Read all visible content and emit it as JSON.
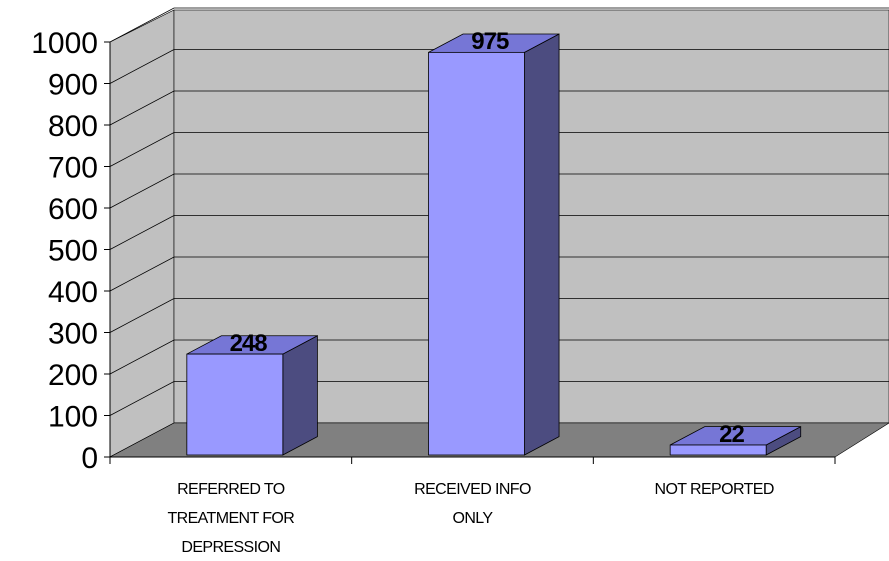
{
  "chart_data": {
    "type": "bar",
    "three_d": true,
    "categories": [
      [
        "REFERRED TO",
        "TREATMENT FOR",
        "DEPRESSION"
      ],
      [
        "RECEIVED INFO",
        "ONLY"
      ],
      [
        "NOT REPORTED"
      ]
    ],
    "values": [
      248,
      975,
      22
    ],
    "data_labels": [
      "248",
      "975",
      "22"
    ],
    "ylim": [
      0,
      1000
    ],
    "yticks": [
      0,
      100,
      200,
      300,
      400,
      500,
      600,
      700,
      800,
      900,
      1000
    ],
    "ytick_labels": [
      "0",
      "100",
      "200",
      "300",
      "400",
      "500",
      "600",
      "700",
      "800",
      "900",
      "1000"
    ],
    "grid": true,
    "title": "",
    "xlabel": "",
    "ylabel": "",
    "colors": {
      "bar_front": "#9999ff",
      "bar_top": "#7676d6",
      "bar_side": "#4c4c80",
      "wall": "#c0c0c0",
      "floor": "#808080",
      "gridline": "#000000"
    }
  }
}
